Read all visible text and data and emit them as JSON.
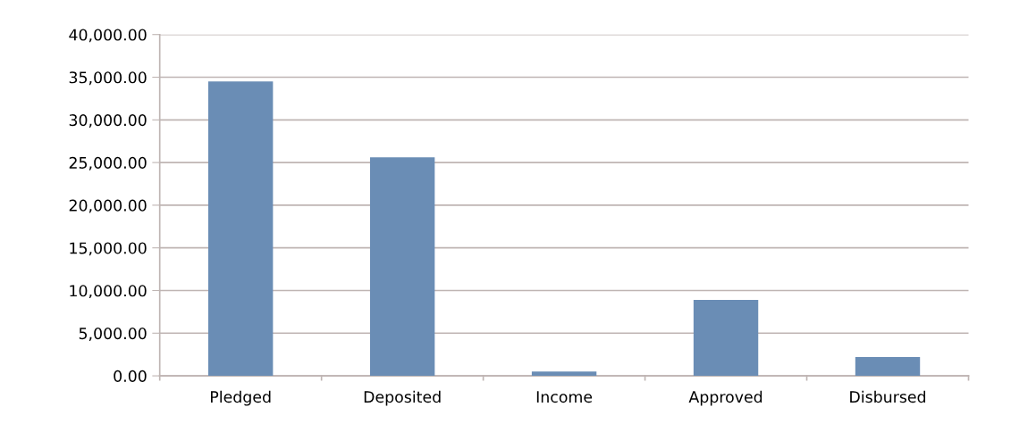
{
  "chart_data": {
    "type": "bar",
    "categories": [
      "Pledged",
      "Deposited",
      "Income",
      "Approved",
      "Disbursed"
    ],
    "values": [
      34500,
      25600,
      500,
      8900,
      2200
    ],
    "color": "#6a8db5",
    "ylim": [
      0,
      40000
    ],
    "yticks": [
      {
        "value": 0,
        "label": "0.00"
      },
      {
        "value": 5000,
        "label": "5,000.00"
      },
      {
        "value": 10000,
        "label": "10,000.00"
      },
      {
        "value": 15000,
        "label": "15,000.00"
      },
      {
        "value": 20000,
        "label": "20,000.00"
      },
      {
        "value": 25000,
        "label": "25,000.00"
      },
      {
        "value": 30000,
        "label": "30,000.00"
      },
      {
        "value": 35000,
        "label": "35,000.00"
      },
      {
        "value": 40000,
        "label": "40,000.00"
      }
    ],
    "grid": "y"
  }
}
